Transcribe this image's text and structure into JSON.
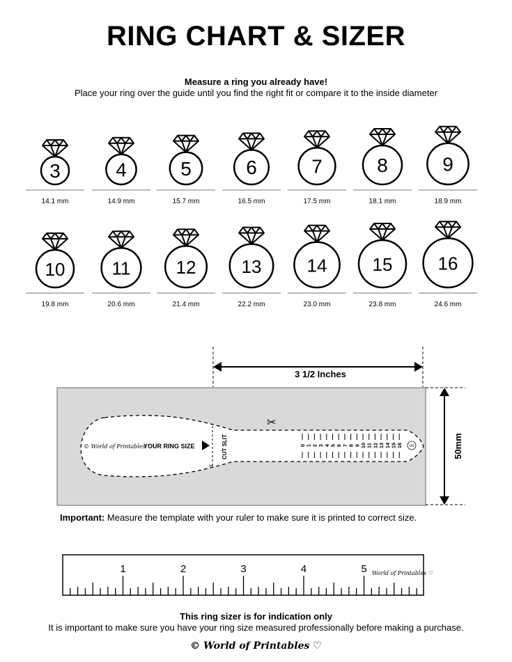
{
  "title": "RING CHART & SIZER",
  "subtitle_bold": "Measure a ring you already have!",
  "subtitle": "Place your ring over the guide until you find the right fit or compare it to the inside diameter",
  "rings": [
    {
      "size": "3",
      "mm": "14.1 mm"
    },
    {
      "size": "4",
      "mm": "14.9 mm"
    },
    {
      "size": "5",
      "mm": "15.7 mm"
    },
    {
      "size": "6",
      "mm": "16.5 mm"
    },
    {
      "size": "7",
      "mm": "17.5 mm"
    },
    {
      "size": "8",
      "mm": "18.1 mm"
    },
    {
      "size": "9",
      "mm": "18.9 mm"
    },
    {
      "size": "10",
      "mm": "19.8 mm"
    },
    {
      "size": "11",
      "mm": "20.6 mm"
    },
    {
      "size": "12",
      "mm": "21.4 mm"
    },
    {
      "size": "13",
      "mm": "22.2 mm"
    },
    {
      "size": "14",
      "mm": "23.0 mm"
    },
    {
      "size": "15",
      "mm": "23.8 mm"
    },
    {
      "size": "16",
      "mm": "24.6 mm"
    }
  ],
  "sizer": {
    "width_label": "3 1/2 Inches",
    "height_label": "50mm",
    "brand": "© World of Printables ♡",
    "your_ring_size": "YOUR RING SIZE",
    "cut_slit": "CUT SLIT",
    "scale": [
      "0",
      "1",
      "2",
      "3",
      "4",
      "5",
      "6",
      "7",
      "8",
      "9",
      "10",
      "11",
      "12",
      "13",
      "14",
      "15",
      "16"
    ],
    "unit_badge": "US"
  },
  "important_label": "Important:",
  "important_text": " Measure the template with your ruler to make sure it is printed to correct size.",
  "ruler": {
    "numbers": [
      "1",
      "2",
      "3",
      "4",
      "5"
    ],
    "brand": "World of Printables ♡"
  },
  "note_bold": "This ring sizer is for indication only",
  "note": "It is important to make sure you have your ring size measured professionally before making a purchase.",
  "footer": "© World of Printables ♡"
}
